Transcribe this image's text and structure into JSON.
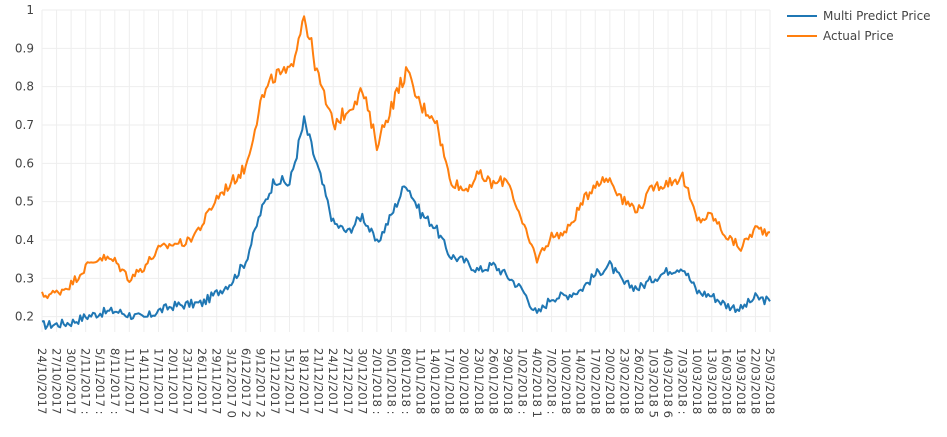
{
  "chart_data": {
    "type": "line",
    "title": "",
    "xlabel": "",
    "ylabel": "",
    "ylim": [
      0.16,
      1.0
    ],
    "y_ticks": [
      0.2,
      0.3,
      0.4,
      0.5,
      0.6,
      0.7,
      0.8,
      0.9,
      1
    ],
    "grid": true,
    "legend_position": "top-right",
    "x_tick_labels": [
      "24/10/2017",
      "27/10/2017",
      "30/10/2017",
      "2/11/2017 :",
      "5/11/2017 :",
      "8/11/2017 :",
      "11/11/2017",
      "14/11/2017",
      "17/11/2017",
      "20/11/2017",
      "23/11/2017",
      "26/11/2017",
      "29/11/2017",
      "3/12/2017 0",
      "6/12/2017 2",
      "9/12/2017 2",
      "12/12/2017",
      "15/12/2017",
      "18/12/2017",
      "21/12/2017",
      "24/12/2017",
      "27/12/2017",
      "30/12/2017",
      "2/01/2018 :",
      "5/01/2018 :",
      "8/01/2018 :",
      "11/01/2018",
      "14/01/2018",
      "17/01/2018",
      "20/01/2018",
      "23/01/2018",
      "26/01/2018",
      "29/01/2018",
      "1/02/2018 :",
      "4/02/2018 1",
      "7/02/2018 :",
      "10/02/2018",
      "14/02/2018",
      "17/02/2018",
      "20/02/2018",
      "23/02/2018",
      "26/02/2018",
      "1/03/2018 5",
      "4/03/2018 6",
      "7/03/2018 :",
      "10/03/2018",
      "13/03/2018",
      "16/03/2018",
      "19/03/2018",
      "22/03/2018",
      "25/03/2018"
    ],
    "series": [
      {
        "name": "Multi Predict Price",
        "color": "#1f77b4",
        "values": [
          0.178,
          0.18,
          0.185,
          0.2,
          0.21,
          0.215,
          0.205,
          0.195,
          0.215,
          0.228,
          0.232,
          0.235,
          0.262,
          0.29,
          0.345,
          0.47,
          0.56,
          0.545,
          0.71,
          0.58,
          0.445,
          0.42,
          0.465,
          0.39,
          0.465,
          0.55,
          0.47,
          0.435,
          0.36,
          0.345,
          0.32,
          0.335,
          0.305,
          0.27,
          0.205,
          0.25,
          0.255,
          0.27,
          0.31,
          0.335,
          0.285,
          0.275,
          0.3,
          0.32,
          0.33,
          0.265,
          0.255,
          0.23,
          0.22,
          0.25,
          0.24
        ]
      },
      {
        "name": "Actual Price",
        "color": "#ff7f0e",
        "values": [
          0.255,
          0.262,
          0.285,
          0.33,
          0.355,
          0.345,
          0.3,
          0.33,
          0.375,
          0.39,
          0.395,
          0.44,
          0.51,
          0.55,
          0.59,
          0.76,
          0.83,
          0.835,
          0.99,
          0.82,
          0.7,
          0.74,
          0.79,
          0.65,
          0.75,
          0.84,
          0.75,
          0.72,
          0.56,
          0.53,
          0.57,
          0.545,
          0.56,
          0.44,
          0.35,
          0.41,
          0.42,
          0.49,
          0.55,
          0.56,
          0.5,
          0.48,
          0.54,
          0.55,
          0.565,
          0.45,
          0.465,
          0.41,
          0.38,
          0.43,
          0.42
        ]
      }
    ]
  }
}
